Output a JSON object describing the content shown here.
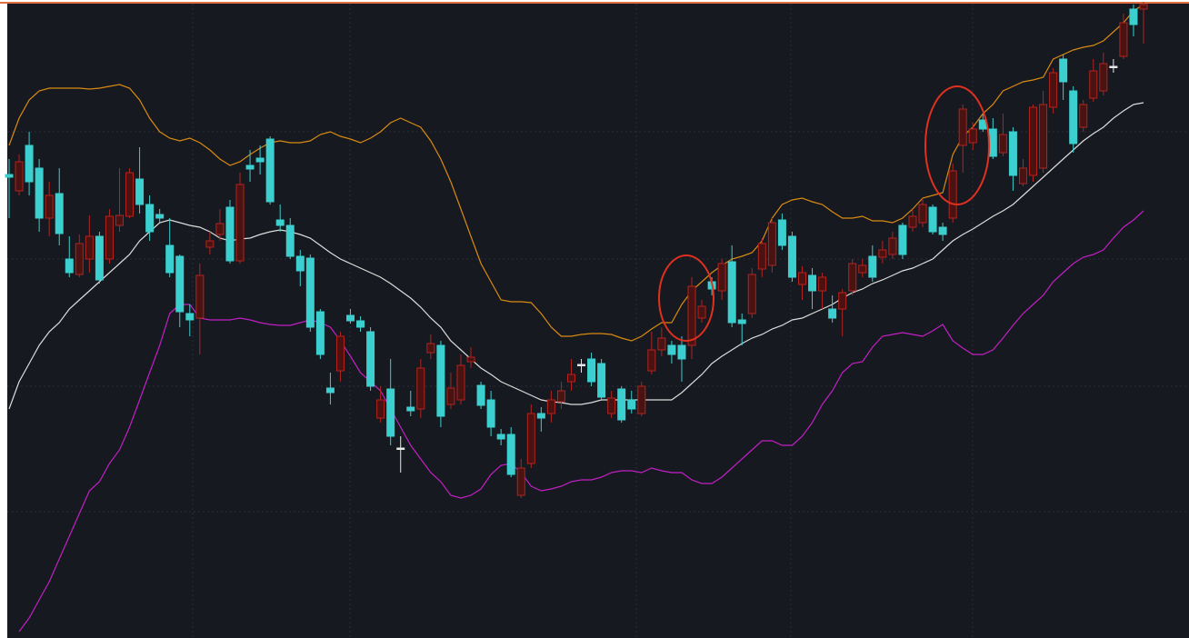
{
  "chart_data": {
    "type": "candlestick",
    "open": [
      508,
      490,
      540,
      515,
      460,
      487,
      415,
      398,
      415,
      440,
      415,
      452,
      462,
      503,
      475,
      464,
      430,
      418,
      355,
      350,
      428,
      442,
      472,
      413,
      518,
      526,
      547,
      458,
      452,
      418,
      416,
      357,
      273,
      292,
      353,
      347,
      335,
      240,
      272,
      207,
      252,
      250,
      312,
      320,
      255,
      260,
      302,
      276,
      260,
      222,
      222,
      155,
      190,
      245,
      245,
      258,
      280,
      299,
      305,
      300,
      245,
      272,
      260,
      245,
      292,
      315,
      320,
      320,
      320,
      350,
      390,
      380,
      412,
      348,
      355,
      404,
      408,
      458,
      440,
      387,
      397,
      380,
      360,
      360,
      380,
      400,
      418,
      417,
      420,
      452,
      450,
      455,
      472,
      450,
      460,
      540,
      543,
      568,
      558,
      532,
      555,
      498,
      507,
      515,
      582,
      635,
      600,
      560,
      592,
      600,
      627,
      638,
      690,
      690
    ],
    "high": [
      525,
      530,
      555,
      525,
      500,
      515,
      440,
      442,
      463,
      445,
      470,
      515,
      515,
      538,
      485,
      470,
      460,
      420,
      365,
      410,
      445,
      470,
      480,
      510,
      535,
      540,
      550,
      475,
      460,
      425,
      420,
      360,
      290,
      335,
      360,
      352,
      340,
      275,
      305,
      220,
      270,
      305,
      332,
      325,
      290,
      310,
      318,
      280,
      270,
      228,
      230,
      195,
      255,
      252,
      270,
      280,
      305,
      305,
      312,
      305,
      270,
      275,
      270,
      280,
      335,
      340,
      325,
      330,
      395,
      370,
      395,
      415,
      430,
      355,
      405,
      438,
      460,
      465,
      445,
      407,
      405,
      400,
      375,
      382,
      415,
      415,
      430,
      435,
      445,
      455,
      470,
      482,
      475,
      455,
      520,
      585,
      565,
      575,
      570,
      575,
      560,
      525,
      585,
      600,
      625,
      640,
      605,
      590,
      635,
      642,
      635,
      685,
      695,
      698
    ],
    "low": [
      460,
      485,
      485,
      445,
      440,
      430,
      395,
      395,
      400,
      388,
      410,
      445,
      460,
      465,
      435,
      455,
      395,
      340,
      330,
      310,
      420,
      435,
      410,
      410,
      500,
      508,
      475,
      445,
      415,
      385,
      335,
      305,
      255,
      280,
      344,
      335,
      270,
      235,
      210,
      180,
      242,
      240,
      305,
      230,
      250,
      255,
      295,
      250,
      220,
      210,
      175,
      152,
      185,
      225,
      235,
      250,
      270,
      290,
      275,
      260,
      240,
      235,
      245,
      242,
      288,
      308,
      300,
      280,
      305,
      345,
      375,
      370,
      340,
      320,
      350,
      395,
      400,
      425,
      390,
      370,
      360,
      360,
      345,
      330,
      375,
      395,
      390,
      410,
      415,
      415,
      445,
      450,
      442,
      435,
      455,
      510,
      535,
      555,
      525,
      528,
      490,
      495,
      500,
      510,
      575,
      590,
      532,
      555,
      588,
      595,
      620,
      635,
      660,
      652
    ],
    "close": [
      505,
      522,
      500,
      460,
      485,
      443,
      400,
      432,
      440,
      392,
      462,
      463,
      510,
      475,
      445,
      460,
      400,
      357,
      348,
      397,
      435,
      454,
      413,
      497,
      514,
      522,
      478,
      452,
      418,
      402,
      340,
      310,
      268,
      330,
      347,
      340,
      275,
      260,
      220,
      207,
      248,
      295,
      322,
      242,
      273,
      298,
      307,
      254,
      230,
      217,
      178,
      185,
      245,
      240,
      260,
      270,
      288,
      299,
      280,
      263,
      262,
      238,
      250,
      275,
      315,
      328,
      310,
      305,
      385,
      363,
      382,
      410,
      345,
      344,
      398,
      432,
      455,
      430,
      395,
      400,
      380,
      395,
      350,
      378,
      410,
      408,
      395,
      425,
      438,
      420,
      462,
      475,
      445,
      442,
      512,
      580,
      558,
      558,
      528,
      552,
      507,
      515,
      582,
      585,
      620,
      610,
      542,
      585,
      622,
      630,
      627,
      675,
      673,
      695
    ],
    "up_color": "#b3231f",
    "up_fill": "#4a1210",
    "down_color": "#3ccfcf",
    "doji_color": "#e8e8e8",
    "overlays": [
      {
        "color": "#d98a12",
        "values": [
          540,
          570,
          590,
          600,
          603,
          603,
          603,
          603,
          602,
          603,
          605,
          607,
          603,
          590,
          570,
          555,
          548,
          545,
          548,
          543,
          535,
          525,
          518,
          522,
          530,
          537,
          543,
          545,
          543,
          543,
          545,
          552,
          555,
          550,
          547,
          543,
          548,
          555,
          565,
          570,
          565,
          560,
          545,
          525,
          500,
          470,
          440,
          410,
          390,
          370,
          368,
          368,
          367,
          355,
          340,
          330,
          330,
          332,
          333,
          333,
          332,
          328,
          325,
          330,
          338,
          345,
          345,
          365,
          380,
          390,
          400,
          408,
          415,
          418,
          422,
          435,
          460,
          475,
          480,
          482,
          478,
          475,
          467,
          460,
          460,
          462,
          457,
          457,
          455,
          460,
          470,
          482,
          485,
          488,
          530,
          550,
          560,
          575,
          585,
          600,
          605,
          610,
          612,
          615,
          635,
          640,
          645,
          648,
          650,
          655,
          665,
          675,
          688,
          695
        ]
      },
      {
        "color": "#dcdcdc",
        "values": [
          250,
          280,
          300,
          320,
          335,
          345,
          360,
          370,
          380,
          390,
          400,
          410,
          420,
          435,
          445,
          455,
          458,
          455,
          452,
          450,
          445,
          438,
          435,
          437,
          438,
          442,
          445,
          447,
          445,
          442,
          438,
          430,
          422,
          415,
          410,
          405,
          400,
          395,
          388,
          380,
          372,
          362,
          350,
          340,
          325,
          315,
          305,
          295,
          288,
          280,
          275,
          270,
          265,
          260,
          258,
          257,
          255,
          255,
          257,
          260,
          260,
          260,
          260,
          260,
          260,
          260,
          260,
          268,
          278,
          288,
          300,
          308,
          315,
          322,
          328,
          332,
          338,
          342,
          348,
          350,
          355,
          360,
          365,
          372,
          378,
          382,
          388,
          392,
          397,
          402,
          405,
          410,
          415,
          425,
          435,
          442,
          448,
          455,
          462,
          468,
          475,
          485,
          495,
          505,
          515,
          525,
          535,
          545,
          553,
          560,
          570,
          578,
          585,
          587
        ]
      },
      {
        "color": "#c21fc4",
        "values": [
          null,
          5,
          20,
          40,
          60,
          85,
          110,
          135,
          160,
          170,
          190,
          205,
          230,
          260,
          290,
          320,
          355,
          365,
          365,
          350,
          348,
          348,
          348,
          350,
          348,
          345,
          343,
          342,
          342,
          345,
          348,
          345,
          340,
          325,
          308,
          290,
          280,
          270,
          250,
          230,
          210,
          195,
          180,
          170,
          155,
          152,
          155,
          162,
          178,
          188,
          190,
          180,
          165,
          160,
          162,
          165,
          170,
          172,
          172,
          175,
          180,
          182,
          182,
          180,
          185,
          182,
          180,
          180,
          172,
          168,
          168,
          175,
          185,
          195,
          205,
          215,
          215,
          210,
          210,
          220,
          235,
          255,
          270,
          290,
          300,
          302,
          318,
          330,
          332,
          334,
          332,
          330,
          336,
          343,
          325,
          317,
          310,
          310,
          315,
          328,
          342,
          355,
          365,
          375,
          390,
          400,
          410,
          417,
          420,
          425,
          438,
          450,
          458,
          468
        ]
      }
    ],
    "ylim": [
      0,
      700
    ]
  }
}
